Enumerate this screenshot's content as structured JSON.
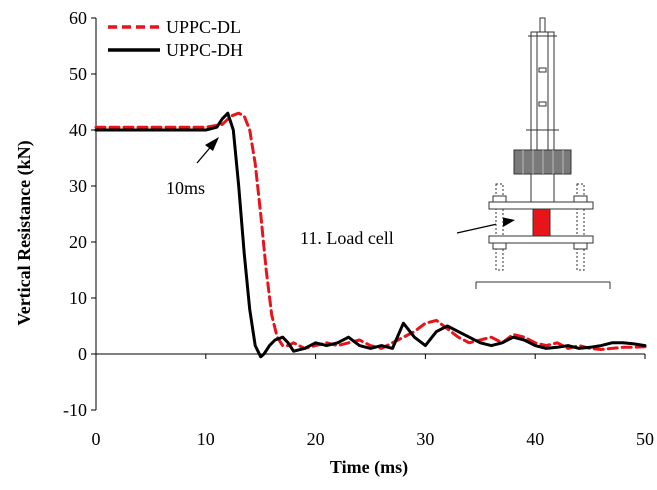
{
  "chart_data": {
    "type": "line",
    "title": "",
    "xlabel": "Time (ms)",
    "ylabel": "Vertical Resistance (kN)",
    "xlim": [
      0,
      50
    ],
    "ylim": [
      -10,
      60
    ],
    "xticks": [
      0,
      10,
      20,
      30,
      40,
      50
    ],
    "yticks": [
      -10,
      0,
      10,
      20,
      30,
      40,
      50,
      60
    ],
    "grid": false,
    "legend_placement": "top-left",
    "series": [
      {
        "name": "UPPC-DL",
        "color": "#e8141a",
        "style": "dashed",
        "x": [
          0,
          5,
          10,
          11.5,
          12.3,
          13,
          13.5,
          14,
          14.5,
          15,
          15.5,
          16,
          16.5,
          17,
          17.5,
          18,
          19,
          20,
          21,
          22,
          23,
          24,
          25,
          26,
          27,
          28,
          29,
          30,
          31,
          32,
          33,
          34,
          35,
          36,
          37,
          38,
          39,
          40,
          41,
          42,
          43,
          44,
          45,
          46,
          47,
          48,
          49,
          50
        ],
        "y": [
          40.5,
          40.5,
          40.5,
          41,
          42.5,
          43,
          42.5,
          40,
          34,
          25,
          15,
          7,
          3,
          1.5,
          1.5,
          2,
          1,
          1.5,
          2,
          1.5,
          2,
          2.5,
          1.5,
          1,
          2,
          3,
          4,
          5.5,
          6,
          4.5,
          3,
          2,
          2.5,
          3,
          2,
          3.5,
          3,
          2,
          1.5,
          2,
          1,
          1.5,
          1,
          0.8,
          1,
          1.2,
          1.2,
          1.3
        ]
      },
      {
        "name": "UPPC-DH",
        "color": "#000000",
        "style": "solid",
        "x": [
          0,
          5,
          10,
          11,
          11.5,
          12,
          12.5,
          13,
          13.5,
          14,
          14.5,
          15,
          15.3,
          15.8,
          16.3,
          17,
          17.5,
          18,
          19,
          20,
          21,
          22,
          23,
          24,
          25,
          26,
          27,
          28,
          29,
          30,
          31,
          32,
          33,
          34,
          35,
          36,
          37,
          38,
          39,
          40,
          41,
          42,
          43,
          44,
          45,
          46,
          47,
          48,
          49,
          50
        ],
        "y": [
          40,
          40,
          40,
          40.5,
          42,
          43,
          40,
          30,
          18,
          8,
          1.5,
          -0.5,
          0,
          1.5,
          2.5,
          3,
          2,
          0.5,
          1,
          2,
          1.5,
          2,
          3,
          1.5,
          1,
          1.5,
          1,
          5.5,
          3,
          1.5,
          4,
          5,
          4,
          3,
          2,
          1.5,
          2,
          3,
          2.5,
          1.5,
          1,
          1.2,
          1.5,
          1,
          1.2,
          1.5,
          2,
          2,
          1.8,
          1.5
        ]
      }
    ],
    "annotations": [
      {
        "text": "10ms",
        "x": 11,
        "y": 40
      },
      {
        "text": "11. Load cell"
      }
    ]
  }
}
